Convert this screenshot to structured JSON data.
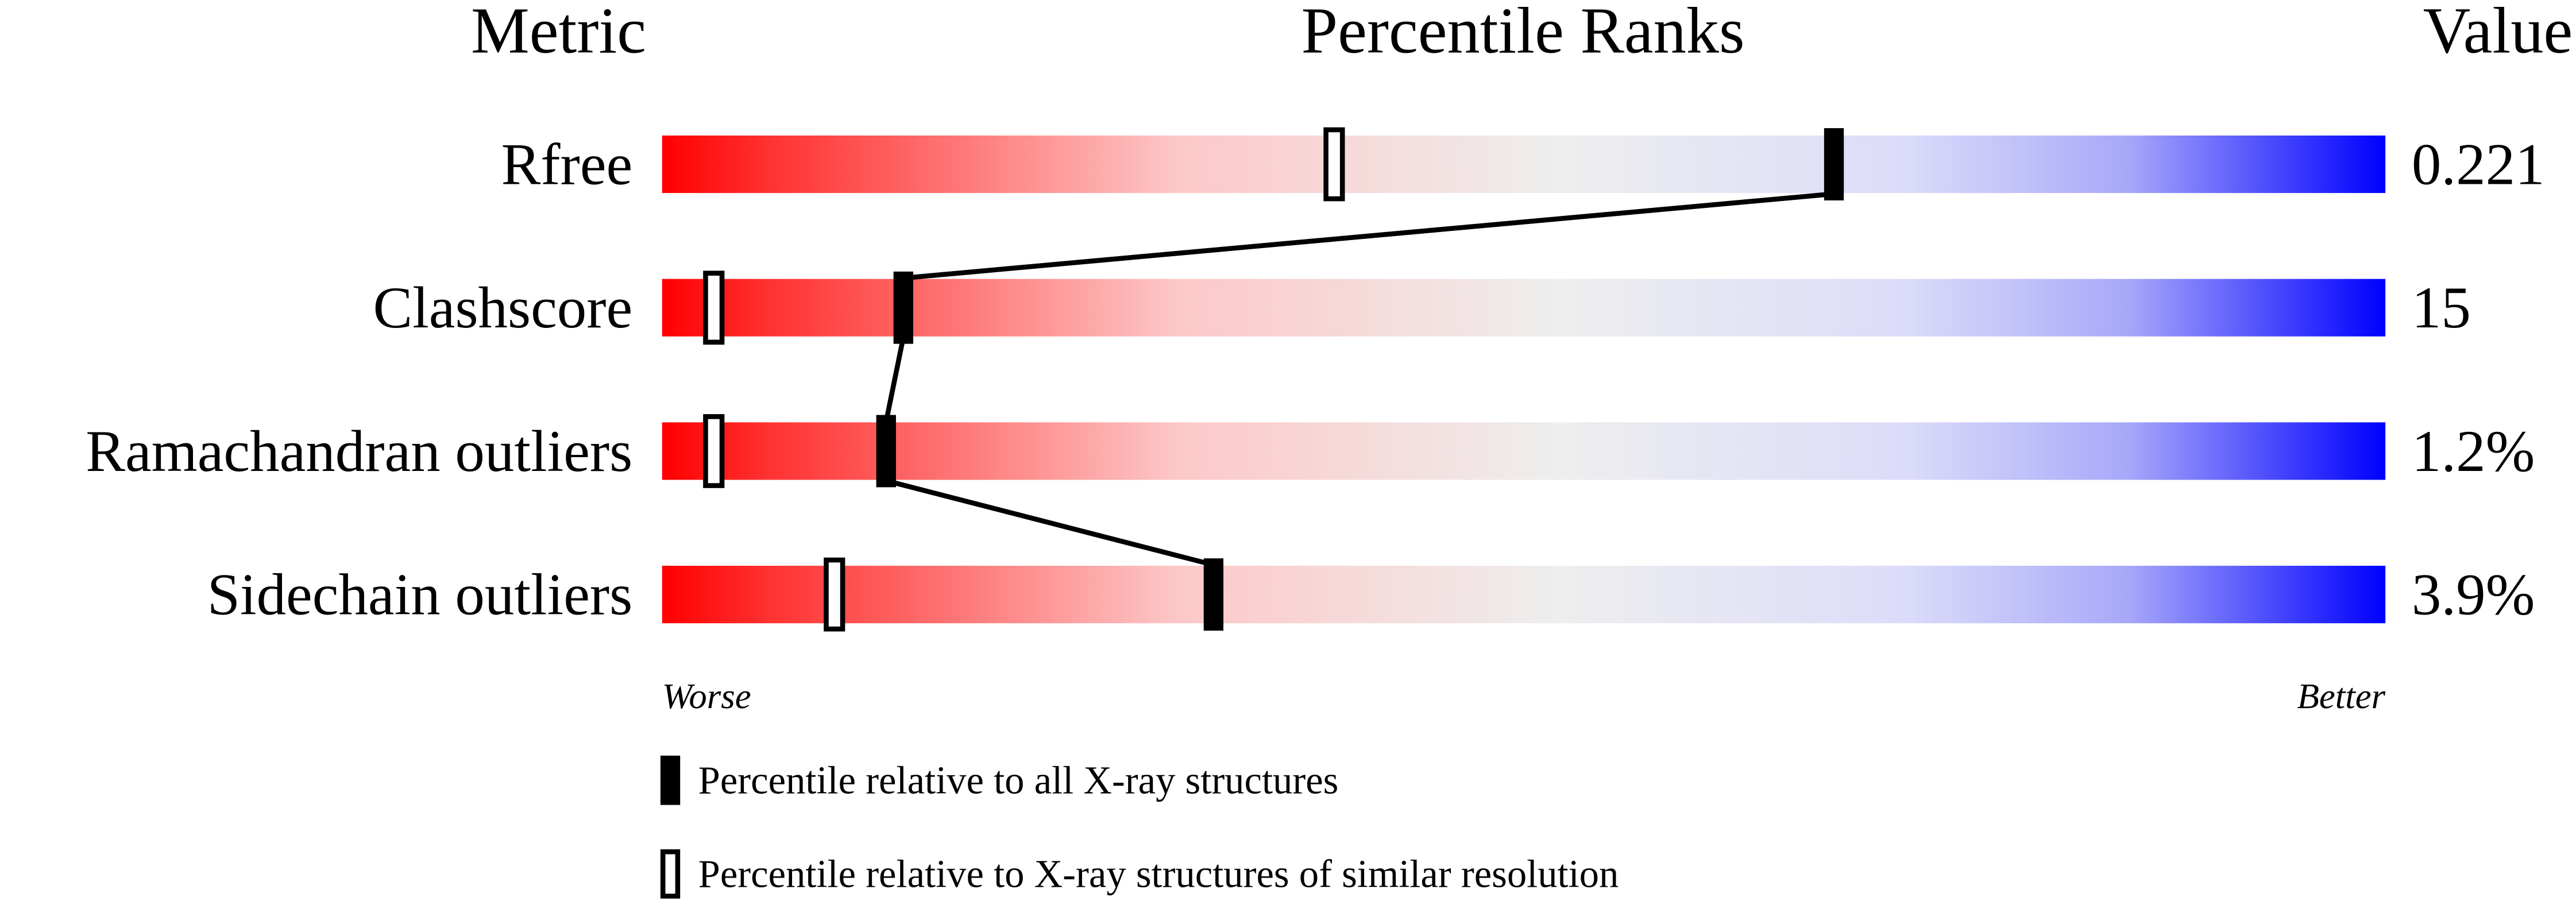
{
  "chart_data": {
    "type": "percentile",
    "headers": [
      "Metric",
      "Percentile Ranks",
      "Value"
    ],
    "categories": [
      "Rfree",
      "Clashscore",
      "Ramachandran outliers",
      "Sidechain outliers"
    ],
    "series": [
      {
        "name": "Percentile relative to all X-ray structures",
        "color": "#000000",
        "filled": true,
        "values": [
          68,
          14,
          13,
          32
        ]
      },
      {
        "name": "Percentile relative to X-ray structures of similar resolution",
        "color": "#000000",
        "filled": false,
        "values": [
          39,
          3,
          3,
          10
        ]
      }
    ],
    "metric_values": [
      0.221,
      15,
      1.2,
      3.9
    ],
    "value_labels": [
      "0.221",
      "15",
      "1.2%",
      "3.9%"
    ],
    "xlim": [
      0,
      100
    ],
    "x_low_label": "Worse",
    "x_high_label": "Better"
  }
}
